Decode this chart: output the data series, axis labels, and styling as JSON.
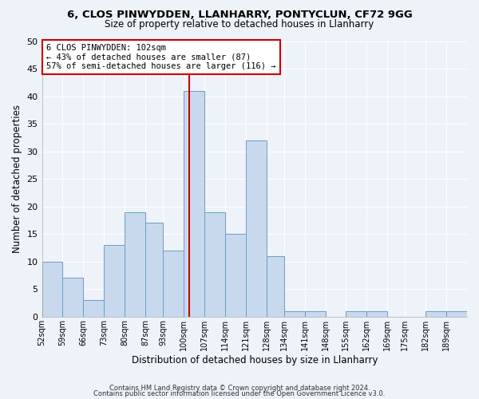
{
  "title_line1": "6, CLOS PINWYDDEN, LLANHARRY, PONTYCLUN, CF72 9GG",
  "title_line2": "Size of property relative to detached houses in Llanharry",
  "xlabel": "Distribution of detached houses by size in Llanharry",
  "ylabel": "Number of detached properties",
  "bar_color": "#c8d9ee",
  "bar_edge_color": "#6b9dc2",
  "background_color": "#eef2f9",
  "grid_color": "#ffffff",
  "bin_edges": [
    52,
    59,
    66,
    73,
    80,
    87,
    93,
    100,
    107,
    114,
    121,
    128,
    134,
    141,
    148,
    155,
    162,
    169,
    175,
    182,
    189,
    196
  ],
  "counts": [
    10,
    7,
    3,
    13,
    19,
    17,
    12,
    41,
    19,
    15,
    32,
    11,
    1,
    1,
    0,
    1,
    1,
    0,
    0,
    1,
    1
  ],
  "tick_labels": [
    "52sqm",
    "59sqm",
    "66sqm",
    "73sqm",
    "80sqm",
    "87sqm",
    "93sqm",
    "100sqm",
    "107sqm",
    "114sqm",
    "121sqm",
    "128sqm",
    "134sqm",
    "141sqm",
    "148sqm",
    "155sqm",
    "162sqm",
    "169sqm",
    "175sqm",
    "182sqm",
    "189sqm"
  ],
  "ylim": [
    0,
    50
  ],
  "yticks": [
    0,
    5,
    10,
    15,
    20,
    25,
    30,
    35,
    40,
    45,
    50
  ],
  "vline_x": 102,
  "vline_color": "#cc0000",
  "annotation_title": "6 CLOS PINWYDDEN: 102sqm",
  "annotation_line1": "← 43% of detached houses are smaller (87)",
  "annotation_line2": "57% of semi-detached houses are larger (116) →",
  "annotation_box_edge": "#cc0000",
  "footer_line1": "Contains HM Land Registry data © Crown copyright and database right 2024.",
  "footer_line2": "Contains public sector information licensed under the Open Government Licence v3.0."
}
